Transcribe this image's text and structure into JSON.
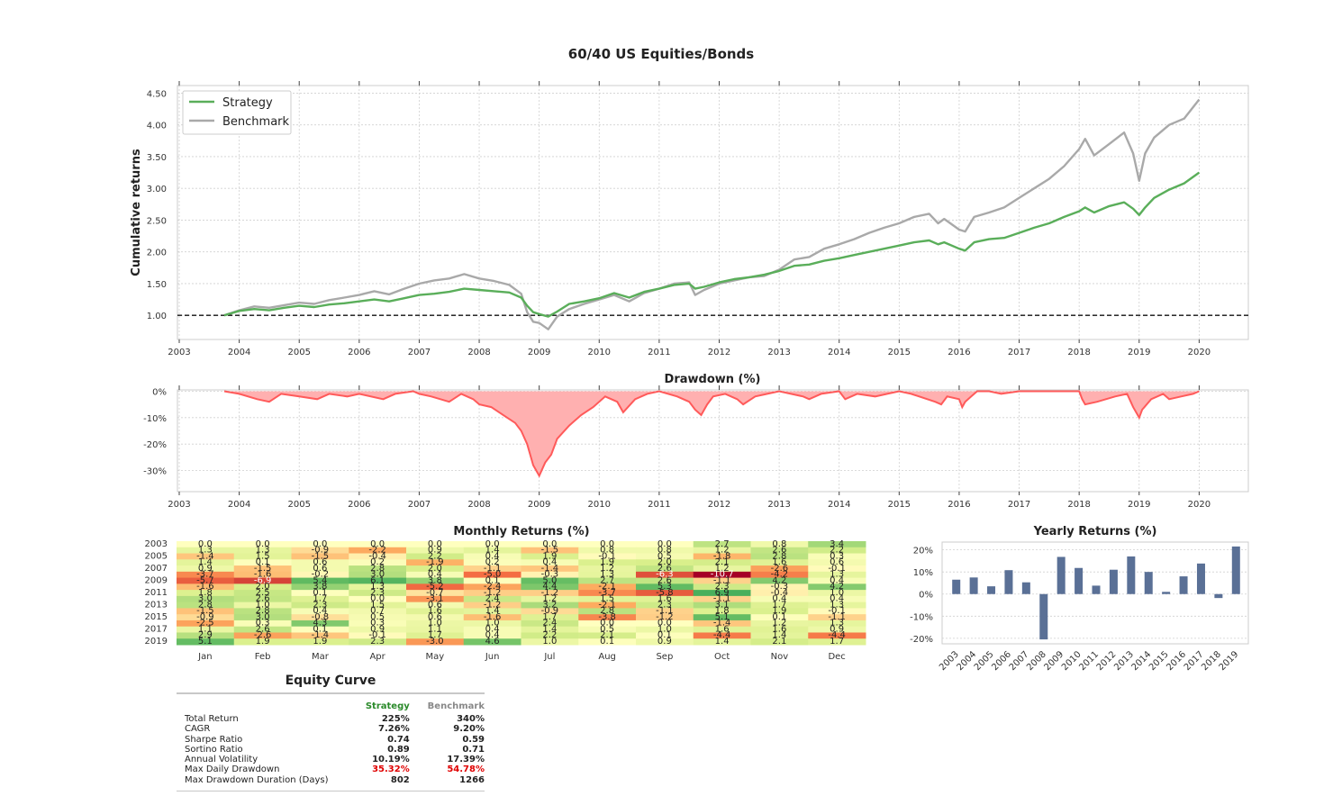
{
  "title": "60/40 US Equities/Bonds",
  "colors": {
    "strategy": "#5aae5a",
    "benchmark": "#a9a9a9",
    "drawdown": "#ff5a5a",
    "drawdown_fill": "#ffb0b0",
    "bars": "#5a7096"
  },
  "chart_data": [
    {
      "type": "line",
      "name": "cumulative_returns",
      "ylabel": "Cumulative returns",
      "ylim": [
        0.62,
        4.62
      ],
      "xlim": [
        2002.97,
        2020.82
      ],
      "yticks": [
        "4.50",
        "4.00",
        "3.50",
        "3.00",
        "2.50",
        "2.00",
        "1.50",
        "1.00"
      ],
      "xticks": [
        "2003",
        "2004",
        "2005",
        "2006",
        "2007",
        "2008",
        "2009",
        "2010",
        "2011",
        "2012",
        "2013",
        "2014",
        "2015",
        "2016",
        "2017",
        "2018",
        "2019",
        "2020"
      ],
      "legend": {
        "placement": "top-left",
        "entries": [
          "Strategy",
          "Benchmark"
        ]
      },
      "baseline": 1.0,
      "x": [
        2003.75,
        2004.0,
        2004.25,
        2004.5,
        2004.75,
        2005.0,
        2005.25,
        2005.5,
        2005.75,
        2006.0,
        2006.25,
        2006.5,
        2006.75,
        2007.0,
        2007.25,
        2007.5,
        2007.75,
        2008.0,
        2008.25,
        2008.5,
        2008.7,
        2008.8,
        2008.9,
        2009.0,
        2009.15,
        2009.3,
        2009.5,
        2009.75,
        2010.0,
        2010.25,
        2010.5,
        2010.75,
        2011.0,
        2011.25,
        2011.5,
        2011.6,
        2011.75,
        2012.0,
        2012.25,
        2012.5,
        2012.75,
        2013.0,
        2013.25,
        2013.5,
        2013.75,
        2014.0,
        2014.25,
        2014.5,
        2014.75,
        2015.0,
        2015.25,
        2015.5,
        2015.65,
        2015.75,
        2016.0,
        2016.1,
        2016.25,
        2016.5,
        2016.75,
        2017.0,
        2017.25,
        2017.5,
        2017.75,
        2018.0,
        2018.1,
        2018.25,
        2018.5,
        2018.75,
        2018.9,
        2019.0,
        2019.1,
        2019.25,
        2019.5,
        2019.75,
        2020.0
      ],
      "series": [
        {
          "name": "Strategy",
          "values": [
            1.0,
            1.07,
            1.1,
            1.08,
            1.12,
            1.15,
            1.13,
            1.17,
            1.19,
            1.22,
            1.25,
            1.22,
            1.27,
            1.32,
            1.34,
            1.37,
            1.42,
            1.4,
            1.38,
            1.36,
            1.28,
            1.15,
            1.05,
            1.02,
            0.98,
            1.06,
            1.18,
            1.22,
            1.27,
            1.35,
            1.28,
            1.37,
            1.42,
            1.48,
            1.5,
            1.42,
            1.45,
            1.52,
            1.57,
            1.6,
            1.64,
            1.7,
            1.78,
            1.8,
            1.86,
            1.9,
            1.95,
            2.0,
            2.05,
            2.1,
            2.15,
            2.18,
            2.12,
            2.15,
            2.05,
            2.02,
            2.15,
            2.2,
            2.22,
            2.3,
            2.38,
            2.45,
            2.55,
            2.64,
            2.7,
            2.62,
            2.72,
            2.78,
            2.68,
            2.58,
            2.7,
            2.85,
            2.98,
            3.08,
            3.25
          ]
        },
        {
          "name": "Benchmark",
          "values": [
            1.0,
            1.08,
            1.14,
            1.12,
            1.16,
            1.2,
            1.18,
            1.24,
            1.28,
            1.32,
            1.38,
            1.33,
            1.42,
            1.5,
            1.55,
            1.58,
            1.65,
            1.58,
            1.54,
            1.48,
            1.34,
            1.05,
            0.9,
            0.88,
            0.78,
            0.98,
            1.1,
            1.18,
            1.25,
            1.32,
            1.22,
            1.35,
            1.42,
            1.5,
            1.52,
            1.32,
            1.4,
            1.5,
            1.55,
            1.6,
            1.62,
            1.72,
            1.88,
            1.92,
            2.05,
            2.12,
            2.2,
            2.3,
            2.38,
            2.45,
            2.55,
            2.6,
            2.45,
            2.52,
            2.35,
            2.32,
            2.55,
            2.62,
            2.7,
            2.85,
            3.0,
            3.15,
            3.35,
            3.62,
            3.78,
            3.52,
            3.7,
            3.88,
            3.55,
            3.12,
            3.55,
            3.8,
            4.0,
            4.1,
            4.4
          ]
        }
      ]
    },
    {
      "type": "area",
      "name": "drawdown",
      "title": "Drawdown (%)",
      "ylim": [
        -38,
        0.5
      ],
      "yticks": [
        "0%",
        "-10%",
        "-20%",
        "-30%"
      ],
      "xticks": [
        "2003",
        "2004",
        "2005",
        "2006",
        "2007",
        "2008",
        "2009",
        "2010",
        "2011",
        "2012",
        "2013",
        "2014",
        "2015",
        "2016",
        "2017",
        "2018",
        "2019",
        "2020"
      ],
      "x": [
        2003.75,
        2004.0,
        2004.3,
        2004.5,
        2004.7,
        2005.0,
        2005.3,
        2005.5,
        2005.8,
        2006.0,
        2006.4,
        2006.6,
        2006.9,
        2007.0,
        2007.2,
        2007.5,
        2007.7,
        2007.9,
        2008.0,
        2008.2,
        2008.4,
        2008.6,
        2008.7,
        2008.8,
        2008.9,
        2009.0,
        2009.1,
        2009.2,
        2009.3,
        2009.5,
        2009.7,
        2009.9,
        2010.1,
        2010.3,
        2010.4,
        2010.6,
        2010.8,
        2011.0,
        2011.3,
        2011.5,
        2011.6,
        2011.7,
        2011.8,
        2011.9,
        2012.1,
        2012.3,
        2012.4,
        2012.6,
        2012.8,
        2013.0,
        2013.4,
        2013.5,
        2013.7,
        2014.0,
        2014.1,
        2014.3,
        2014.6,
        2014.8,
        2015.0,
        2015.2,
        2015.6,
        2015.7,
        2015.8,
        2016.0,
        2016.05,
        2016.1,
        2016.2,
        2016.3,
        2016.5,
        2016.7,
        2017.0,
        2017.5,
        2018.0,
        2018.05,
        2018.1,
        2018.3,
        2018.6,
        2018.8,
        2018.9,
        2019.0,
        2019.05,
        2019.2,
        2019.4,
        2019.5,
        2019.7,
        2019.9,
        2020.0
      ],
      "values": [
        0,
        -1,
        -3,
        -4,
        -1,
        -2,
        -3,
        -1,
        -2,
        -1,
        -3,
        -1,
        0,
        -1,
        -2,
        -4,
        -1,
        -3,
        -5,
        -6,
        -9,
        -12,
        -15,
        -20,
        -28,
        -32,
        -27,
        -24,
        -18,
        -13,
        -9,
        -6,
        -2,
        -4,
        -8,
        -3,
        -1,
        0,
        -2,
        -4,
        -7,
        -9,
        -5,
        -2,
        -1,
        -3,
        -5,
        -2,
        -1,
        0,
        -2,
        -3,
        -1,
        0,
        -3,
        -1,
        -2,
        -1,
        0,
        -1,
        -4,
        -5,
        -2,
        -3,
        -6,
        -4,
        -2,
        0,
        0,
        -1,
        0,
        0,
        0,
        -3,
        -5,
        -4,
        -2,
        -1,
        -6,
        -10,
        -7,
        -3,
        -1,
        -3,
        -2,
        -1,
        0
      ]
    },
    {
      "type": "heatmap",
      "name": "monthly_returns",
      "title": "Monthly Returns (%)",
      "xlabels": [
        "Jan",
        "Feb",
        "Mar",
        "Apr",
        "May",
        "Jun",
        "Jul",
        "Aug",
        "Sep",
        "Oct",
        "Nov",
        "Dec"
      ],
      "ylabels": [
        "2003",
        "2005",
        "2007",
        "2009",
        "2011",
        "2013",
        "2015",
        "2017",
        "2019"
      ],
      "years": [
        2003,
        2004,
        2005,
        2006,
        2007,
        2008,
        2009,
        2010,
        2011,
        2012,
        2013,
        2014,
        2015,
        2016,
        2017,
        2018,
        2019
      ],
      "values": [
        [
          0.0,
          0.0,
          0.0,
          0.0,
          0.0,
          0.0,
          0.0,
          0.0,
          0.0,
          2.7,
          0.8,
          3.4
        ],
        [
          1.3,
          1.3,
          -0.9,
          -2.2,
          0.9,
          1.4,
          -1.5,
          0.8,
          0.8,
          1.2,
          2.6,
          2.2
        ],
        [
          -1.4,
          1.5,
          -1.5,
          -0.4,
          2.2,
          0.4,
          1.9,
          -0.1,
          0.5,
          -1.8,
          2.8,
          0.3
        ],
        [
          1.4,
          0.1,
          0.6,
          0.2,
          -1.9,
          0.2,
          0.4,
          1.9,
          2.0,
          2.1,
          1.6,
          0.6
        ],
        [
          0.9,
          -1.5,
          0.6,
          2.8,
          2.0,
          -1.1,
          -1.4,
          1.2,
          2.6,
          1.2,
          -2.6,
          -0.1
        ],
        [
          -3.7,
          -1.6,
          -0.2,
          3.0,
          0.4,
          -5.0,
          -0.3,
          1.3,
          -6.3,
          -10.7,
          -4.2,
          1.3
        ],
        [
          -5.7,
          -6.9,
          5.4,
          6.1,
          3.8,
          0.1,
          5.0,
          2.7,
          2.6,
          -1.1,
          4.2,
          0.4
        ],
        [
          -1.6,
          2.0,
          3.8,
          1.3,
          -5.2,
          -2.4,
          4.4,
          -2.1,
          5.3,
          2.3,
          -0.3,
          4.2
        ],
        [
          1.8,
          2.5,
          0.1,
          2.3,
          -0.7,
          -1.2,
          -1.2,
          -3.7,
          -5.8,
          6.9,
          -0.4,
          1.0
        ],
        [
          3.0,
          2.6,
          1.7,
          -0.0,
          -3.1,
          2.4,
          1.2,
          1.5,
          1.6,
          -1.1,
          0.4,
          0.4
        ],
        [
          2.8,
          1.0,
          2.3,
          1.5,
          0.6,
          -1.2,
          3.2,
          -2.1,
          2.3,
          3.1,
          1.7,
          1.3
        ],
        [
          -1.5,
          2.8,
          0.4,
          0.7,
          1.6,
          1.4,
          -0.9,
          2.8,
          -1.1,
          1.8,
          1.9,
          -0.1
        ],
        [
          -0.9,
          3.0,
          -0.8,
          0.5,
          0.6,
          -1.6,
          1.7,
          -3.8,
          -1.2,
          5.1,
          0.1,
          -1.1
        ],
        [
          -2.5,
          0.3,
          4.3,
          0.3,
          1.0,
          1.0,
          2.4,
          -0.0,
          0.0,
          -1.4,
          1.2,
          1.3
        ],
        [
          1.1,
          2.6,
          0.1,
          0.9,
          1.1,
          0.4,
          1.4,
          0.5,
          1.0,
          1.6,
          1.6,
          0.9
        ],
        [
          2.9,
          -2.6,
          -1.4,
          -0.1,
          1.7,
          0.4,
          2.2,
          2.1,
          0.1,
          -4.4,
          1.4,
          -4.4
        ],
        [
          5.1,
          1.9,
          1.9,
          2.3,
          -3.0,
          4.6,
          1.0,
          0.1,
          0.9,
          1.4,
          2.1,
          1.7
        ]
      ]
    },
    {
      "type": "bar",
      "name": "yearly_returns",
      "title": "Yearly Returns (%)",
      "ylim": [
        -22.5,
        23.5
      ],
      "yticks": [
        "20%",
        "10%",
        "0%",
        "-10%",
        "-20%"
      ],
      "categories": [
        "2003",
        "2004",
        "2005",
        "2006",
        "2007",
        "2008",
        "2009",
        "2010",
        "2011",
        "2012",
        "2013",
        "2014",
        "2015",
        "2016",
        "2017",
        "2018",
        "2019"
      ],
      "values": [
        6.5,
        7.5,
        3.5,
        10.8,
        5.3,
        -20.5,
        16.8,
        11.8,
        3.8,
        11.0,
        17.0,
        10.0,
        1.0,
        8.0,
        13.8,
        -1.8,
        21.5
      ]
    }
  ],
  "equity_table": {
    "title": "Equity Curve",
    "header": {
      "metric": "",
      "strategy": "Strategy",
      "benchmark": "Benchmark"
    },
    "rows": [
      {
        "label": "Total Return",
        "strategy": "225%",
        "benchmark": "340%"
      },
      {
        "label": "CAGR",
        "strategy": "7.26%",
        "benchmark": "9.20%"
      },
      {
        "label": "Sharpe Ratio",
        "strategy": "0.74",
        "benchmark": "0.59"
      },
      {
        "label": "Sortino Ratio",
        "strategy": "0.89",
        "benchmark": "0.71"
      },
      {
        "label": "Annual Volatility",
        "strategy": "10.19%",
        "benchmark": "17.39%"
      },
      {
        "label": "Max Daily Drawdown",
        "strategy": "35.32%",
        "benchmark": "54.78%"
      },
      {
        "label": "Max Drawdown Duration (Days)",
        "strategy": "802",
        "benchmark": "1266"
      }
    ]
  }
}
